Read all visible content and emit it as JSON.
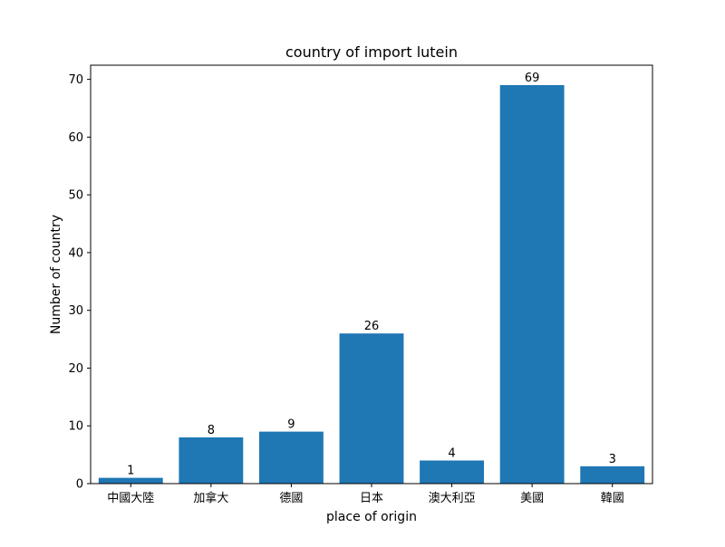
{
  "chart_data": {
    "type": "bar",
    "title": "country of import lutein",
    "xlabel": "place of origin",
    "ylabel": "Number of country",
    "categories": [
      "中國大陸",
      "加拿大",
      "德國",
      "日本",
      "澳大利亞",
      "美國",
      "韓國"
    ],
    "values": [
      1,
      8,
      9,
      26,
      4,
      69,
      3
    ],
    "ylim": [
      0,
      72.45
    ],
    "yticks": [
      0,
      10,
      20,
      30,
      40,
      50,
      60,
      70
    ],
    "bar_color": "#1f77b4",
    "grid": false,
    "legend": "none"
  }
}
